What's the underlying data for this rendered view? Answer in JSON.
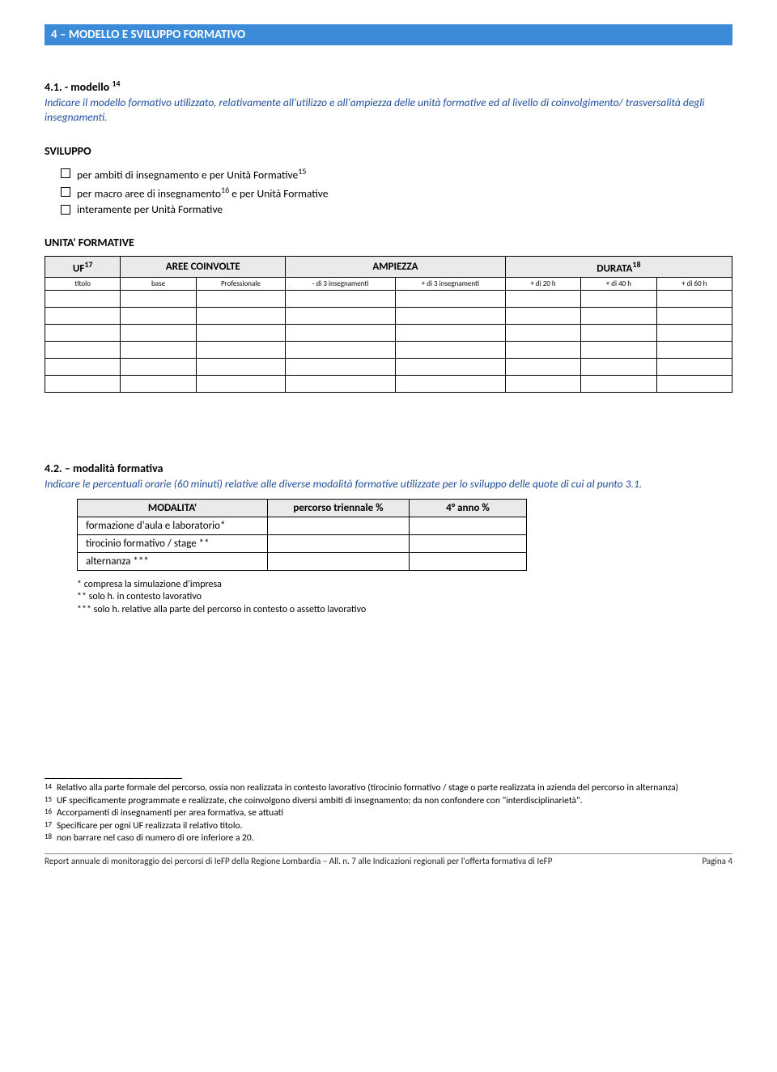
{
  "section_bar": "4 – MODELLO E SVILUPPO FORMATIVO",
  "s41": {
    "title_prefix": "4.1. - modello",
    "title_sup": "14",
    "desc": "Indicare il modello formativo utilizzato, relativamente all'utilizzo e all'ampiezza delle unità formative ed al livello di coinvolgimento/ trasversalità degli insegnamenti."
  },
  "sviluppo": {
    "label": "SVILUPPO",
    "items": [
      {
        "text_a": "per ambiti di insegnamento e per Unità Formative",
        "sup": "15",
        "text_b": ""
      },
      {
        "text_a": "per macro aree di insegnamento",
        "sup": "16",
        "text_b": " e per Unità Formative"
      },
      {
        "text_a": "interamente per Unità Formative",
        "sup": "",
        "text_b": ""
      }
    ]
  },
  "unita_label": "UNITA' FORMATIVE",
  "uf_table": {
    "headers": {
      "uf": "UF",
      "uf_sup": "17",
      "aree": "AREE COINVOLTE",
      "amp": "AMPIEZZA",
      "dur": "DURATA",
      "dur_sup": "18"
    },
    "sub": {
      "titolo": "titolo",
      "base": "base",
      "prof": "Professionale",
      "m3": "- di 3 insegnamenti",
      "p3": "+ di 3 insegnamenti",
      "d20": "+ di 20 h",
      "d40": "+ di 40 h",
      "d60": "+ di 60 h"
    },
    "empty_rows": 6,
    "col_widths": [
      "11%",
      "11%",
      "13%",
      "16%",
      "16%",
      "11%",
      "11%",
      "11%"
    ]
  },
  "s42": {
    "title": "4.2. – modalità formativa",
    "desc": "Indicare le percentuali orarie (60 minuti) relative alle diverse modalità formative utilizzate per lo sviluppo delle quote di cui al punto 3.1."
  },
  "mod_table": {
    "headers": {
      "m": "MODALITA'",
      "p": "percorso triennale %",
      "a": "4° anno %"
    },
    "rows": [
      "formazione d'aula e laboratorio*",
      "tirocinio formativo / stage **",
      "alternanza ***"
    ],
    "col_widths": [
      "235px",
      "175px",
      "145px"
    ]
  },
  "notes": [
    "* compresa la simulazione d'impresa",
    "** solo h. in contesto lavorativo",
    "*** solo h. relative alla parte del percorso in contesto o assetto lavorativo"
  ],
  "footnotes": [
    {
      "n": "14",
      "t": "Relativo alla parte formale del percorso, ossia non realizzata in contesto lavorativo (tirocinio formativo / stage o parte realizzata in azienda del percorso in alternanza)"
    },
    {
      "n": "15",
      "t": "UF specificamente programmate e realizzate, che coinvolgono diversi ambiti di insegnamento; da non confondere con \"interdisciplinarietà\"."
    },
    {
      "n": "16",
      "t": "Accorpamenti di insegnamenti per area formativa, se attuati"
    },
    {
      "n": "17",
      "t": "Specificare per ogni UF realizzata il relativo titolo."
    },
    {
      "n": "18",
      "t": "non barrare nel caso di numero di ore inferiore a 20."
    }
  ],
  "footer": {
    "left": "Report annuale di monitoraggio dei percorsi di IeFP della Regione Lombardia – All. n. 7 alle Indicazioni regionali per l'offerta formativa di IeFP",
    "right": "Pagina 4"
  }
}
